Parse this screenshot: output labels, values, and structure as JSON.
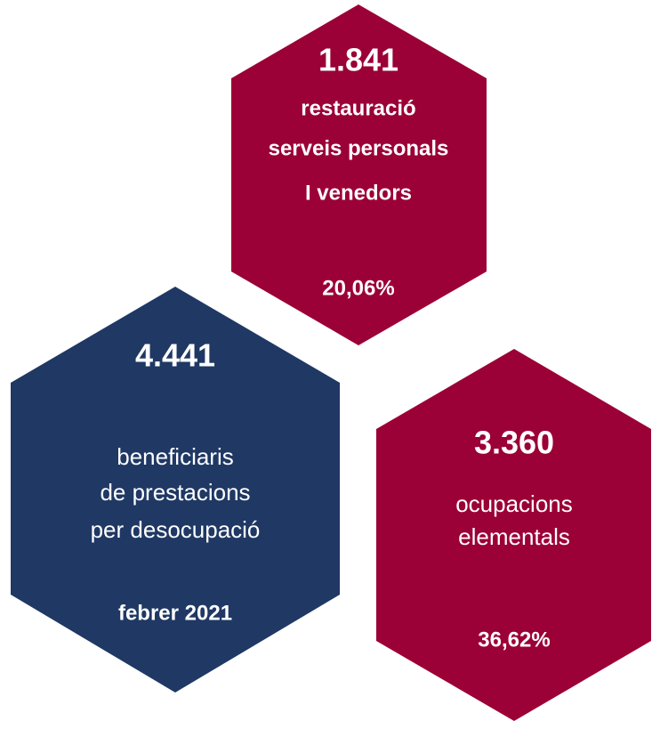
{
  "hexagons": [
    {
      "value": "1.841",
      "lines": [
        "restauració",
        "serveis personals",
        "I venedors"
      ],
      "share": "20,06%"
    },
    {
      "value": "4.441",
      "lines": [
        "beneficiaris",
        "de prestacions",
        "per desocupació"
      ],
      "date": "febrer 2021"
    },
    {
      "value": "3.360",
      "lines": [
        "ocupacions",
        "elementals"
      ],
      "share": "36,62%"
    }
  ]
}
